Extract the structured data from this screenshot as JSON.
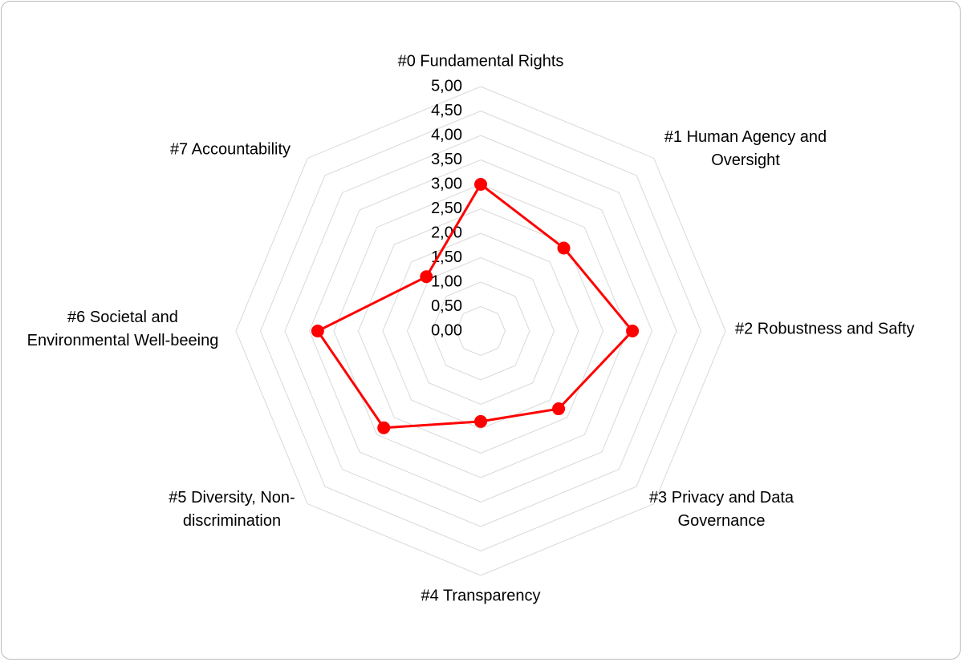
{
  "chart_data": {
    "type": "radar",
    "categories": [
      "#0 Fundamental Rights",
      "#1 Human Agency and Oversight",
      "#2 Robustness and Safty",
      "#3 Privacy and Data Governance",
      "#4 Transparency",
      "#5 Diversity, Non-discrimination",
      "#6 Societal and Environmental Well-beeing",
      "#7 Accountability"
    ],
    "values": [
      3.0,
      2.4,
      3.1,
      2.25,
      1.85,
      2.8,
      3.33,
      1.57
    ],
    "color": "#ff0000",
    "ylim": [
      0,
      5
    ],
    "yticks": [
      {
        "value": 0,
        "label": "0,00"
      },
      {
        "value": 0.5,
        "label": "0,50"
      },
      {
        "value": 1,
        "label": "1,00"
      },
      {
        "value": 1.5,
        "label": "1,50"
      },
      {
        "value": 2,
        "label": "2,00"
      },
      {
        "value": 2.5,
        "label": "2,50"
      },
      {
        "value": 3,
        "label": "3,00"
      },
      {
        "value": 3.5,
        "label": "3,50"
      },
      {
        "value": 4,
        "label": "4,00"
      },
      {
        "value": 4.5,
        "label": "4,50"
      },
      {
        "value": 5,
        "label": "5,00"
      }
    ],
    "grid": true
  }
}
